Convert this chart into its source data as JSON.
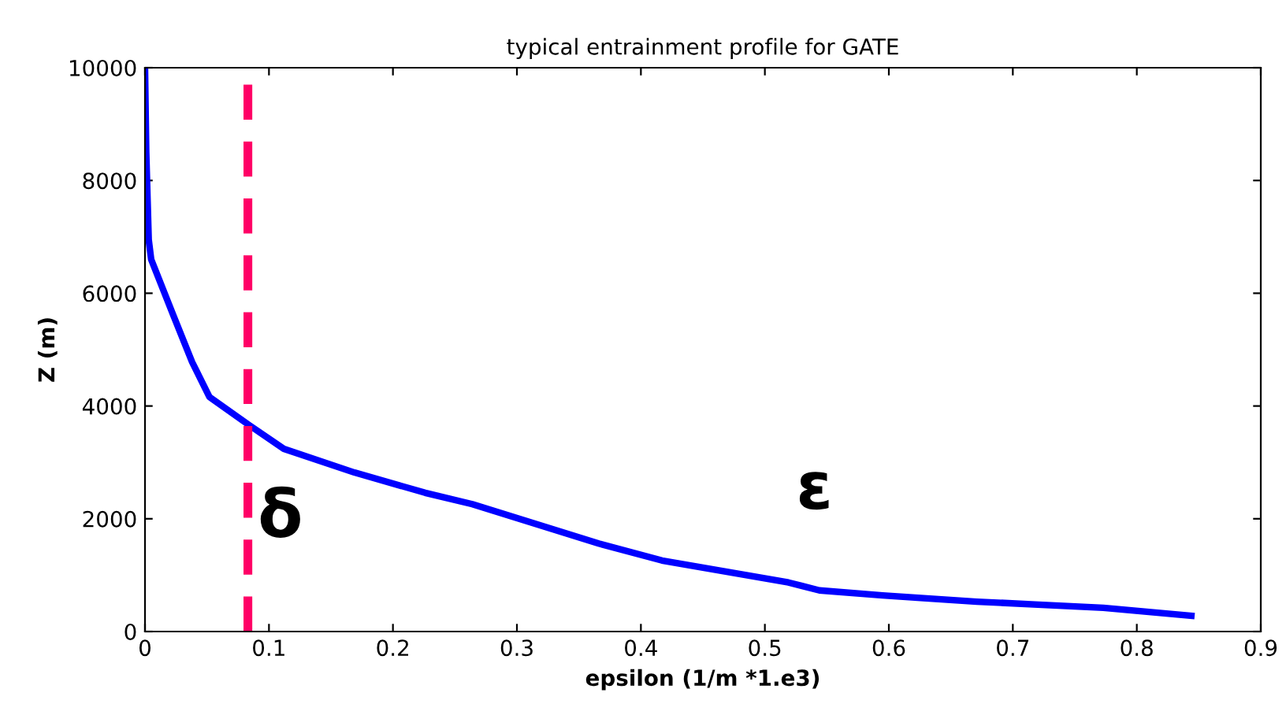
{
  "chart_data": {
    "type": "line",
    "title": "typical entrainment profile for GATE",
    "xlabel": "epsilon (1/m *1.e3)",
    "ylabel": "Z (m)",
    "series": [
      {
        "color": "#0000ff",
        "x": [
          0,
          0.001,
          0.003,
          0.005,
          0.023,
          0.038,
          0.052,
          0.084,
          0.112,
          0.169,
          0.226,
          0.264,
          0.366,
          0.417,
          0.519,
          0.544,
          0.595,
          0.671,
          0.773,
          0.844
        ],
        "values": [
          10000,
          8500,
          6950,
          6600,
          5600,
          4780,
          4160,
          3660,
          3240,
          2820,
          2460,
          2260,
          1560,
          1260,
          870,
          730,
          640,
          530,
          420,
          280
        ]
      }
    ],
    "xlim": [
      0,
      0.9
    ],
    "ylim": [
      0,
      10000
    ],
    "xticks": [
      0,
      0.1,
      0.2,
      0.3,
      0.4,
      0.5,
      0.6,
      0.7,
      0.8,
      0.9
    ],
    "yticks": [
      0,
      2000,
      4000,
      6000,
      8000,
      10000
    ],
    "ref_lines": [
      {
        "axis": "x",
        "value": 0.083,
        "label": "δ",
        "color": "#ff0066",
        "line_style": "dashed"
      }
    ],
    "annotations": [
      "ε"
    ],
    "grid": false,
    "legend": false,
    "marker": "none",
    "line_style": "solid"
  }
}
